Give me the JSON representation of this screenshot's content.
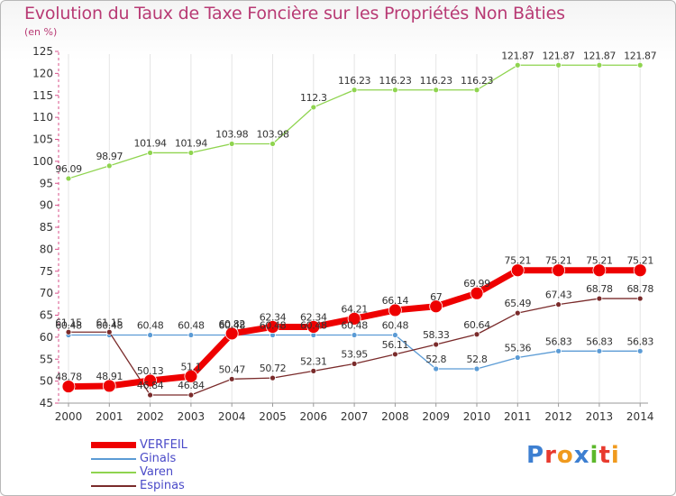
{
  "header": {
    "title": "Evolution du Taux de Taxe Foncière sur les Propriétés Non Bâties",
    "unit": "(en %)"
  },
  "brand": {
    "text": "Proxiti",
    "letters": [
      {
        "ch": "P",
        "color": "#3d7fd1"
      },
      {
        "ch": "r",
        "color": "#e83a2e"
      },
      {
        "ch": "o",
        "color": "#f09a1e"
      },
      {
        "ch": "x",
        "color": "#3d7fd1"
      },
      {
        "ch": "i",
        "color": "#5cb82b"
      },
      {
        "ch": "t",
        "color": "#e83a2e"
      },
      {
        "ch": "i",
        "color": "#f09a1e"
      }
    ]
  },
  "chart_data": {
    "type": "line",
    "title": "Evolution du Taux de Taxe Foncière sur les Propriétés Non Bâties",
    "ylabel": "(en %)",
    "xlabel": "",
    "x": [
      "2000",
      "2001",
      "2002",
      "2003",
      "2004",
      "2005",
      "2006",
      "2007",
      "2008",
      "2009",
      "2010",
      "2011",
      "2012",
      "2013",
      "2014"
    ],
    "ylim": [
      45,
      125
    ],
    "yticks": [
      45,
      50,
      55,
      60,
      65,
      70,
      75,
      80,
      85,
      90,
      95,
      100,
      105,
      110,
      115,
      120,
      125
    ],
    "grid": "vertical",
    "legend_position": "bottom-left",
    "series": [
      {
        "name": "Ginals",
        "color": "#5b9bd5",
        "values": [
          60.48,
          60.48,
          60.48,
          60.48,
          60.48,
          60.48,
          60.48,
          60.48,
          60.48,
          52.8,
          52.8,
          55.36,
          56.83,
          56.83,
          56.83
        ],
        "labels": [
          "60.48",
          "60.48",
          "60.48",
          "60.48",
          "60.48",
          "60.48",
          "60.48",
          "60.48",
          "60.48",
          "52.8",
          "52.8",
          "55.36",
          "56.83",
          "56.83",
          "56.83"
        ]
      },
      {
        "name": "Espinas",
        "color": "#7a2b2b",
        "values": [
          61.15,
          61.15,
          46.84,
          46.84,
          50.47,
          50.72,
          52.31,
          53.95,
          56.11,
          58.33,
          60.64,
          65.49,
          67.43,
          68.78,
          68.78
        ],
        "labels": [
          "61.15",
          "61.15",
          "46.84",
          "46.84",
          "50.47",
          "50.72",
          "52.31",
          "53.95",
          "56.11",
          "58.33",
          "60.64",
          "65.49",
          "67.43",
          "68.78",
          "68.78"
        ]
      },
      {
        "name": "Varen",
        "color": "#8fd44f",
        "values": [
          96.09,
          98.97,
          101.94,
          101.94,
          103.98,
          103.98,
          112.3,
          116.23,
          116.23,
          116.23,
          116.23,
          121.87,
          121.87,
          121.87,
          121.87
        ],
        "labels": [
          "96.09",
          "98.97",
          "101.94",
          "101.94",
          "103.98",
          "103.98",
          "112.3",
          "116.23",
          "116.23",
          "116.23",
          "116.23",
          "121.87",
          "121.87",
          "121.87",
          "121.87"
        ]
      },
      {
        "name": "VERFEIL",
        "color": "#ee0000",
        "values": [
          48.78,
          48.91,
          50.13,
          51.1,
          60.82,
          62.34,
          62.34,
          64.21,
          66.14,
          67,
          69.99,
          75.21,
          75.21,
          75.21,
          75.21
        ],
        "labels": [
          "48.78",
          "48.91",
          "50.13",
          "51.1",
          "60.82",
          "62.34",
          "62.34",
          "64.21",
          "66.14",
          "67",
          "69.99",
          "75.21",
          "75.21",
          "75.21",
          "75.21"
        ]
      }
    ],
    "legend_order": [
      "VERFEIL",
      "Ginals",
      "Varen",
      "Espinas"
    ]
  }
}
